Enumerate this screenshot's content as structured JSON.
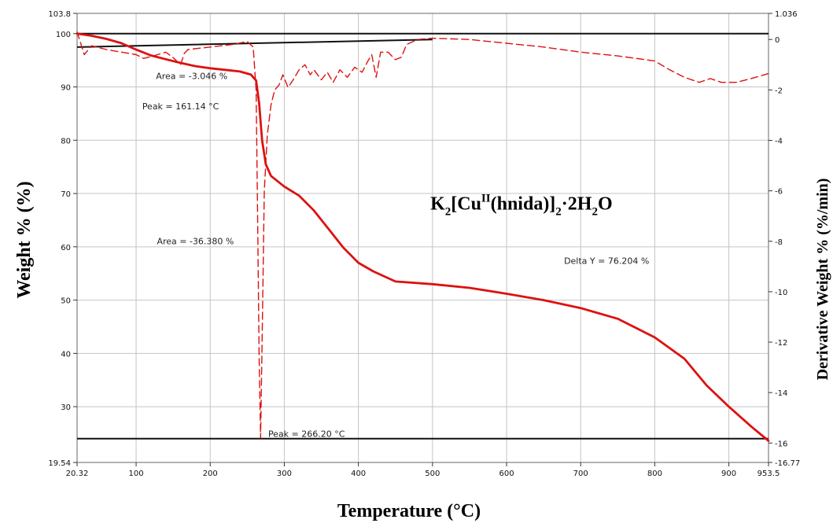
{
  "chart_data": {
    "type": "line",
    "title": "K2[CuII(hnida)]2·2H2O",
    "title_parts": {
      "k": "K",
      "k_sub": "2",
      "cu": "[Cu",
      "cu_sup": "II",
      "mid": "(hnida)]",
      "mid_sub": "2",
      "dot": "·2H",
      "h_sub": "2",
      "o": "O"
    },
    "xlabel": "Temperature (°C)",
    "ylabel": "Weight % (%)",
    "y2label": "Derivative Weight % (%/min)",
    "xlim": [
      20.32,
      953.5
    ],
    "ylim": [
      19.54,
      103.8
    ],
    "y2lim": [
      -16.77,
      1.036
    ],
    "x_ticks": [
      "20.32",
      "100",
      "200",
      "300",
      "400",
      "500",
      "600",
      "700",
      "800",
      "900",
      "953.5"
    ],
    "x_tick_values": [
      20.32,
      100,
      200,
      300,
      400,
      500,
      600,
      700,
      800,
      900,
      953.5
    ],
    "y_ticks": [
      "19.54",
      "30",
      "40",
      "50",
      "60",
      "70",
      "80",
      "90",
      "100",
      "103.8"
    ],
    "y_tick_values": [
      19.54,
      30,
      40,
      50,
      60,
      70,
      80,
      90,
      100,
      103.8
    ],
    "y2_ticks": [
      "-16.77",
      "-16",
      "-14",
      "-12",
      "-10",
      "-8",
      "-6",
      "-4",
      "-2",
      "0",
      "1.036"
    ],
    "y2_tick_values": [
      -16.77,
      -16,
      -14,
      -12,
      -10,
      -8,
      -6,
      -4,
      -2,
      0,
      1.036
    ],
    "grid": true,
    "series": [
      {
        "axis": "left",
        "style": "solid",
        "color": "#dd1111",
        "points": [
          [
            20.32,
            100.0
          ],
          [
            40,
            99.6
          ],
          [
            60,
            99.0
          ],
          [
            80,
            98.2
          ],
          [
            100,
            97.0
          ],
          [
            120,
            95.9
          ],
          [
            140,
            95.2
          ],
          [
            160,
            94.5
          ],
          [
            180,
            93.9
          ],
          [
            200,
            93.5
          ],
          [
            220,
            93.2
          ],
          [
            240,
            92.9
          ],
          [
            255,
            92.3
          ],
          [
            262,
            91.2
          ],
          [
            266,
            87.0
          ],
          [
            270,
            80.0
          ],
          [
            275,
            75.5
          ],
          [
            282,
            73.3
          ],
          [
            300,
            71.3
          ],
          [
            320,
            69.6
          ],
          [
            340,
            66.8
          ],
          [
            360,
            63.3
          ],
          [
            380,
            59.8
          ],
          [
            400,
            57.0
          ],
          [
            420,
            55.4
          ],
          [
            450,
            53.5
          ],
          [
            500,
            53.0
          ],
          [
            550,
            52.3
          ],
          [
            600,
            51.2
          ],
          [
            650,
            50.0
          ],
          [
            700,
            48.5
          ],
          [
            750,
            46.5
          ],
          [
            800,
            43.0
          ],
          [
            840,
            39.0
          ],
          [
            870,
            34.0
          ],
          [
            900,
            30.0
          ],
          [
            930,
            26.3
          ],
          [
            953.5,
            23.6
          ]
        ]
      },
      {
        "axis": "right",
        "style": "dashed",
        "color": "#dd1111",
        "points": [
          [
            20.32,
            0.3
          ],
          [
            30,
            -0.6
          ],
          [
            40,
            -0.25
          ],
          [
            60,
            -0.4
          ],
          [
            80,
            -0.5
          ],
          [
            100,
            -0.6
          ],
          [
            110,
            -0.75
          ],
          [
            120,
            -0.68
          ],
          [
            140,
            -0.5
          ],
          [
            150,
            -0.72
          ],
          [
            160,
            -1.0
          ],
          [
            165,
            -0.55
          ],
          [
            170,
            -0.4
          ],
          [
            200,
            -0.3
          ],
          [
            230,
            -0.2
          ],
          [
            250,
            -0.08
          ],
          [
            258,
            -0.3
          ],
          [
            262,
            -2.0
          ],
          [
            264,
            -7.0
          ],
          [
            266,
            -12.5
          ],
          [
            268,
            -15.8
          ],
          [
            270,
            -12.0
          ],
          [
            273,
            -6.0
          ],
          [
            277,
            -3.8
          ],
          [
            282,
            -2.6
          ],
          [
            287,
            -2.0
          ],
          [
            293,
            -1.8
          ],
          [
            298,
            -1.4
          ],
          [
            305,
            -1.9
          ],
          [
            312,
            -1.6
          ],
          [
            320,
            -1.2
          ],
          [
            328,
            -1.0
          ],
          [
            335,
            -1.4
          ],
          [
            340,
            -1.2
          ],
          [
            350,
            -1.6
          ],
          [
            358,
            -1.3
          ],
          [
            366,
            -1.7
          ],
          [
            375,
            -1.2
          ],
          [
            385,
            -1.5
          ],
          [
            395,
            -1.1
          ],
          [
            405,
            -1.3
          ],
          [
            412,
            -0.9
          ],
          [
            418,
            -0.6
          ],
          [
            424,
            -1.5
          ],
          [
            430,
            -0.5
          ],
          [
            440,
            -0.5
          ],
          [
            450,
            -0.8
          ],
          [
            458,
            -0.7
          ],
          [
            465,
            -0.2
          ],
          [
            480,
            0.0
          ],
          [
            500,
            0.05
          ],
          [
            550,
            0.0
          ],
          [
            600,
            -0.15
          ],
          [
            650,
            -0.3
          ],
          [
            700,
            -0.5
          ],
          [
            750,
            -0.65
          ],
          [
            800,
            -0.85
          ],
          [
            820,
            -1.2
          ],
          [
            840,
            -1.5
          ],
          [
            860,
            -1.7
          ],
          [
            875,
            -1.55
          ],
          [
            890,
            -1.7
          ],
          [
            910,
            -1.7
          ],
          [
            930,
            -1.55
          ],
          [
            953.5,
            -1.35
          ]
        ]
      }
    ],
    "annotations": [
      {
        "text": "Area = -3.046 %",
        "x": 175,
        "y": 91.5,
        "axis": "left"
      },
      {
        "text": "Peak = 161.14 °C",
        "x": 160,
        "y": 85.8,
        "axis": "left"
      },
      {
        "text": "Area = -36.380 %",
        "x": 180,
        "y": 60.5,
        "axis": "left"
      },
      {
        "text": "Peak = 266.20 °C",
        "x": 330,
        "y": 24.3,
        "axis": "left"
      },
      {
        "text": "Delta Y = 76.204 %",
        "x": 735,
        "y": 56.8,
        "axis": "left"
      }
    ],
    "markers": [
      {
        "x1": 20.32,
        "y1": 100.0,
        "x2": 953.5,
        "y2": 100.0,
        "axis": "left",
        "role": "baseline"
      },
      {
        "x1": 20.32,
        "y1": 24.0,
        "x2": 953.5,
        "y2": 24.0,
        "axis": "left",
        "role": "baseline"
      },
      {
        "x1": 20.32,
        "y1": -0.3,
        "x2": 500,
        "y2": 0.0,
        "axis": "right",
        "role": "integration"
      }
    ],
    "title_position": {
      "x": 620,
      "y": 67
    }
  }
}
